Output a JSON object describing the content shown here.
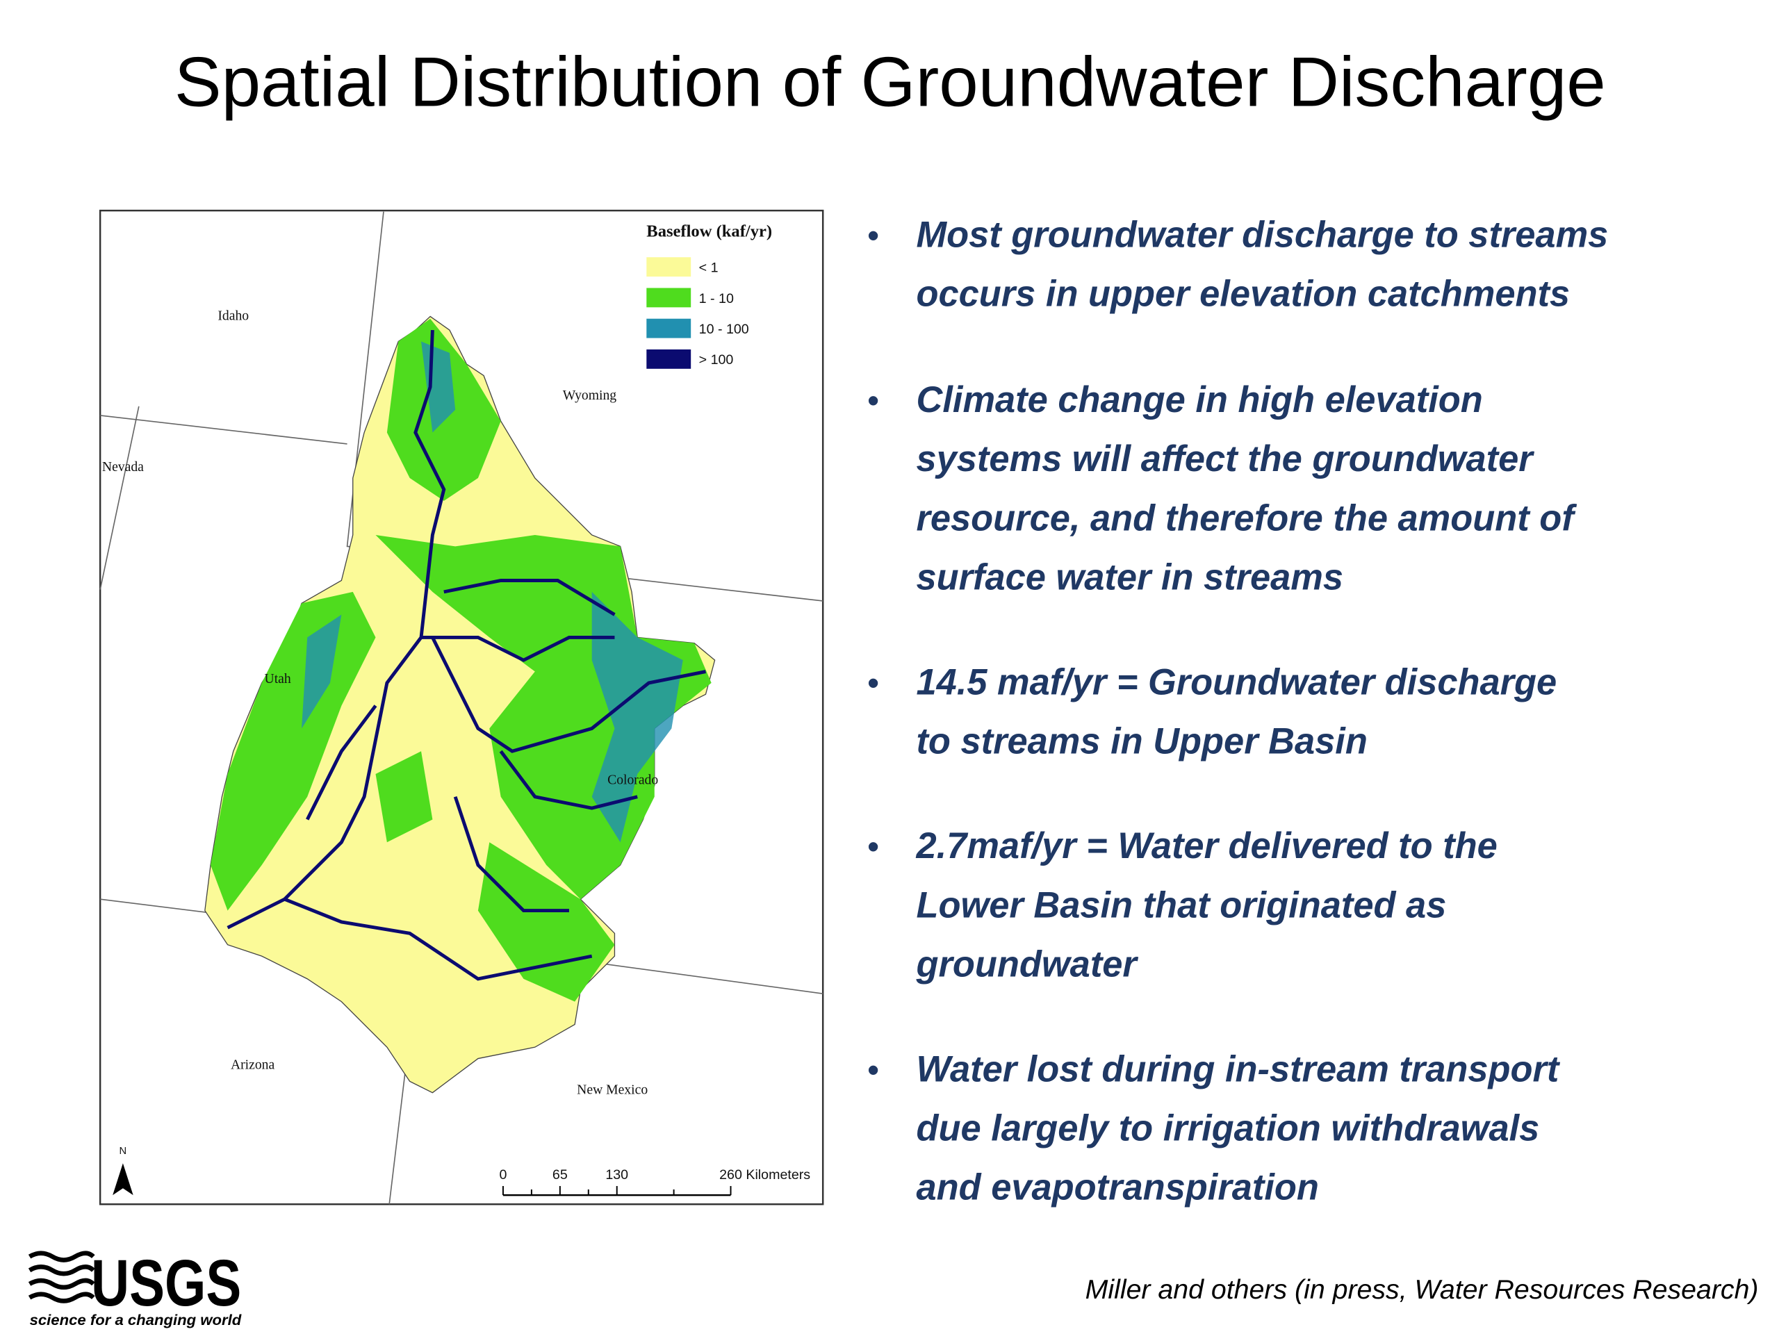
{
  "header": {
    "title": "Spatial Distribution of Groundwater Discharge"
  },
  "map": {
    "legend": {
      "title": "Baseflow (kaf/yr)",
      "items": [
        {
          "label": "< 1",
          "color": "#fbfa98"
        },
        {
          "label": "1 - 10",
          "color": "#4fdc1e"
        },
        {
          "label": "10 - 100",
          "color": "#2190b0"
        },
        {
          "label": "> 100",
          "color": "#0b0b70"
        }
      ]
    },
    "states": [
      "Idaho",
      "Wyoming",
      "Nevada",
      "Utah",
      "Colorado",
      "Arizona",
      "New Mexico"
    ],
    "north": "N",
    "scale": [
      "0",
      "65",
      "130",
      "260 Kilometers"
    ]
  },
  "bullets": [
    {
      "lines": [
        "Most groundwater discharge to streams",
        "occurs in upper elevation catchments"
      ]
    },
    {
      "lines": [
        "Climate change in high elevation",
        "systems will affect the groundwater",
        "resource, and therefore the amount of",
        "surface water in streams"
      ]
    },
    {
      "lines": [
        "14.5 maf/yr = Groundwater discharge",
        "to streams in Upper Basin"
      ]
    },
    {
      "lines": [
        "2.7maf/yr = Water delivered to the",
        "Lower Basin that originated as",
        "groundwater"
      ]
    },
    {
      "lines": [
        "Water lost during in-stream transport",
        "due largely to irrigation withdrawals",
        "and evapotranspiration"
      ]
    }
  ],
  "footer": {
    "logo": "USGS",
    "tagline": "science for a changing world",
    "citation": "Miller and others (in press, Water Resources Research)"
  }
}
